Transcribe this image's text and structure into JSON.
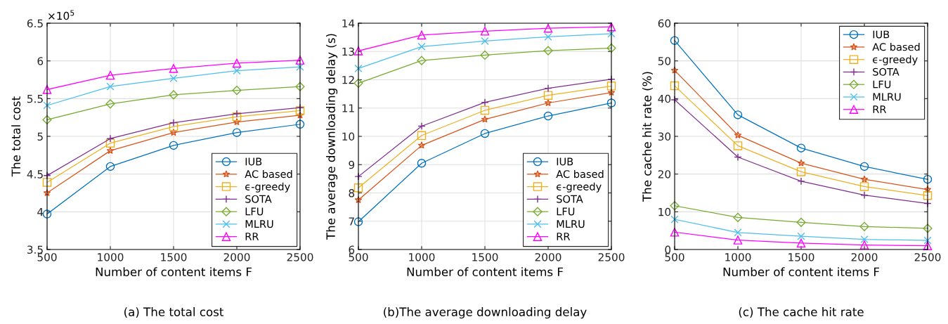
{
  "chart_data": [
    {
      "type": "line",
      "title": "(a) The total cost",
      "xlabel": "Number of content items F",
      "ylabel": "The total cost",
      "annotations": [
        "×10$^{5}$"
      ],
      "x": [
        500,
        1000,
        1500,
        2000,
        2500
      ],
      "xlim": [
        500,
        2500
      ],
      "xticks": [
        500,
        1000,
        1500,
        2000,
        2500
      ],
      "ylim": [
        3.5,
        6.5
      ],
      "yticks": [
        3.5,
        4,
        4.5,
        5,
        5.5,
        6,
        6.5
      ],
      "grid": true,
      "legend": "bottom right",
      "line_style": "solid",
      "series": [
        {
          "name": "IUB",
          "color": "#0072bd",
          "marker": "circle",
          "values": [
            3.97,
            4.6,
            4.88,
            5.05,
            5.16
          ]
        },
        {
          "name": "AC based",
          "color": "#d95319",
          "marker": "star",
          "values": [
            4.25,
            4.81,
            5.05,
            5.19,
            5.28
          ]
        },
        {
          "name": "ϵ-greedy",
          "color": "#edb120",
          "marker": "square",
          "values": [
            4.39,
            4.91,
            5.13,
            5.26,
            5.34
          ]
        },
        {
          "name": "SOTA",
          "color": "#7e2f8e",
          "marker": "plus",
          "values": [
            4.48,
            4.97,
            5.18,
            5.3,
            5.38
          ]
        },
        {
          "name": "LFU",
          "color": "#77ac30",
          "marker": "diamond",
          "values": [
            5.22,
            5.43,
            5.55,
            5.61,
            5.66
          ]
        },
        {
          "name": "MLRU",
          "color": "#4dbeee",
          "marker": "cross",
          "values": [
            5.41,
            5.66,
            5.77,
            5.87,
            5.92
          ]
        },
        {
          "name": "RR",
          "color": "#ff00ff",
          "marker": "triangle",
          "values": [
            5.62,
            5.81,
            5.9,
            5.97,
            6.01
          ]
        }
      ]
    },
    {
      "type": "line",
      "title": "(b)The average downloading delay",
      "xlabel": "Number of content items F",
      "ylabel": "The average downloading delay (s)",
      "x": [
        500,
        1000,
        1500,
        2000,
        2500
      ],
      "xlim": [
        500,
        2500
      ],
      "xticks": [
        500,
        1000,
        1500,
        2000,
        2500
      ],
      "ylim": [
        6,
        14
      ],
      "yticks": [
        6,
        7,
        8,
        9,
        10,
        11,
        12,
        13,
        14
      ],
      "grid": true,
      "legend": "bottom right",
      "line_style": "solid",
      "series": [
        {
          "name": "IUB",
          "color": "#0072bd",
          "marker": "circle",
          "values": [
            6.98,
            9.05,
            10.1,
            10.72,
            11.18
          ]
        },
        {
          "name": "AC based",
          "color": "#d95319",
          "marker": "star",
          "values": [
            7.75,
            9.68,
            10.6,
            11.18,
            11.55
          ]
        },
        {
          "name": "ϵ-greedy",
          "color": "#edb120",
          "marker": "square",
          "values": [
            8.18,
            10.03,
            10.92,
            11.45,
            11.78
          ]
        },
        {
          "name": "SOTA",
          "color": "#7e2f8e",
          "marker": "plus",
          "values": [
            8.58,
            10.36,
            11.2,
            11.7,
            12.02
          ]
        },
        {
          "name": "LFU",
          "color": "#77ac30",
          "marker": "diamond",
          "values": [
            11.88,
            12.68,
            12.87,
            13.03,
            13.12
          ]
        },
        {
          "name": "MLRU",
          "color": "#4dbeee",
          "marker": "cross",
          "values": [
            12.4,
            13.17,
            13.37,
            13.52,
            13.63
          ]
        },
        {
          "name": "RR",
          "color": "#ff00ff",
          "marker": "triangle",
          "values": [
            13.02,
            13.58,
            13.72,
            13.82,
            13.87
          ]
        }
      ]
    },
    {
      "type": "line",
      "title": "(c) The cache hit rate",
      "xlabel": "Number of content items F",
      "ylabel": "The cache hit rate (%)",
      "x": [
        500,
        1000,
        1500,
        2000,
        2500
      ],
      "xlim": [
        500,
        2500
      ],
      "xticks": [
        500,
        1000,
        1500,
        2000,
        2500
      ],
      "ylim": [
        0,
        60
      ],
      "yticks": [
        0,
        10,
        20,
        30,
        40,
        50,
        60
      ],
      "grid": true,
      "legend": "top right",
      "line_style": "solid",
      "series": [
        {
          "name": "IUB",
          "color": "#0072bd",
          "marker": "circle",
          "values": [
            55.4,
            35.7,
            26.9,
            22.0,
            18.6
          ]
        },
        {
          "name": "AC based",
          "color": "#d95319",
          "marker": "star",
          "values": [
            47.5,
            30.3,
            22.9,
            18.6,
            15.9
          ]
        },
        {
          "name": "ϵ-greedy",
          "color": "#edb120",
          "marker": "square",
          "values": [
            43.4,
            27.5,
            20.6,
            16.7,
            14.3
          ]
        },
        {
          "name": "SOTA",
          "color": "#7e2f8e",
          "marker": "plus",
          "values": [
            39.7,
            24.5,
            18.1,
            14.4,
            12.2
          ]
        },
        {
          "name": "LFU",
          "color": "#77ac30",
          "marker": "diamond",
          "values": [
            11.6,
            8.5,
            7.2,
            6.1,
            5.6
          ]
        },
        {
          "name": "MLRU",
          "color": "#4dbeee",
          "marker": "cross",
          "values": [
            8.0,
            4.5,
            3.5,
            2.7,
            2.4
          ]
        },
        {
          "name": "RR",
          "color": "#ff00ff",
          "marker": "triangle",
          "values": [
            4.6,
            2.5,
            1.7,
            1.2,
            1.0
          ]
        }
      ]
    }
  ]
}
